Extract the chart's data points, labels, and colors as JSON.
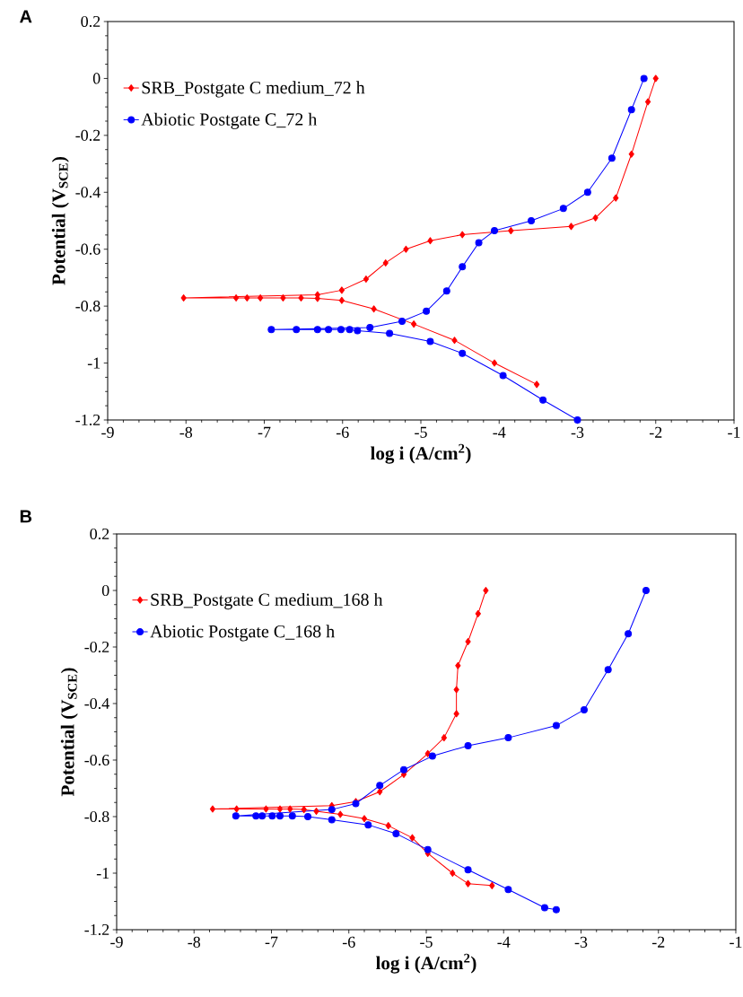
{
  "chart_data": [
    {
      "type": "line",
      "annotations": [
        "A"
      ],
      "xlabel": "log i (A/cm$^{2}$)",
      "ylabel": "Potential (V$_{SCE}$)",
      "xlim": [
        -9,
        -1
      ],
      "ylim": [
        -1.2,
        0.2
      ],
      "xticks": [
        -9,
        -8,
        -7,
        -6,
        -5,
        -4,
        -3,
        -2,
        -1
      ],
      "yticks": [
        -1.2,
        -1,
        -0.8,
        -0.6,
        -0.4,
        -0.2,
        0,
        0.2
      ],
      "grid": false,
      "legend": "top left",
      "series": [
        {
          "name": "SRB_Postgate C medium_72 h",
          "color": "#ff0000",
          "marker": "diamond",
          "x": [
            -3.52,
            -4.06,
            -4.57,
            -5.09,
            -5.6,
            -6.01,
            -6.32,
            -6.53,
            -6.76,
            -7.05,
            -7.22,
            -7.36,
            -8.03,
            -6.32,
            -6.01,
            -5.7,
            -5.45,
            -5.19,
            -4.88,
            -4.47,
            -3.85,
            -3.08,
            -2.77,
            -2.51,
            -2.31,
            -2.1,
            -2.0
          ],
          "values": [
            -1.075,
            -1.0,
            -0.92,
            -0.863,
            -0.81,
            -0.78,
            -0.773,
            -0.771,
            -0.771,
            -0.771,
            -0.771,
            -0.771,
            -0.771,
            -0.76,
            -0.744,
            -0.705,
            -0.648,
            -0.6,
            -0.57,
            -0.549,
            -0.535,
            -0.52,
            -0.49,
            -0.42,
            -0.266,
            -0.082,
            0
          ]
        },
        {
          "name": "Abiotic Postgate C_72 h",
          "color": "#0000ff",
          "marker": "circle",
          "x": [
            -3.0,
            -3.44,
            -3.95,
            -4.47,
            -4.88,
            -5.4,
            -5.81,
            -5.91,
            -6.02,
            -6.18,
            -6.32,
            -6.59,
            -6.91,
            -5.65,
            -5.24,
            -4.93,
            -4.67,
            -4.47,
            -4.26,
            -4.06,
            -3.59,
            -3.18,
            -2.87,
            -2.56,
            -2.31,
            -2.15
          ],
          "values": [
            -1.2,
            -1.13,
            -1.044,
            -0.966,
            -0.924,
            -0.896,
            -0.886,
            -0.882,
            -0.882,
            -0.882,
            -0.882,
            -0.882,
            -0.882,
            -0.875,
            -0.853,
            -0.818,
            -0.747,
            -0.662,
            -0.577,
            -0.535,
            -0.5,
            -0.457,
            -0.4,
            -0.28,
            -0.11,
            0
          ]
        }
      ]
    },
    {
      "type": "line",
      "annotations": [
        "B"
      ],
      "xlabel": "log i (A/cm$^{2}$)",
      "ylabel": "Potential (V$_{SCE}$)",
      "xlim": [
        -9,
        -1
      ],
      "ylim": [
        -1.2,
        0.2
      ],
      "xticks": [
        -9,
        -8,
        -7,
        -6,
        -5,
        -4,
        -3,
        -2,
        -1
      ],
      "yticks": [
        -1.2,
        -1,
        -0.8,
        -0.6,
        -0.4,
        -0.2,
        0,
        0.2
      ],
      "grid": false,
      "legend": "top left",
      "series": [
        {
          "name": "SRB_Postgate C medium_168 h",
          "color": "#ff0000",
          "marker": "diamond",
          "x": [
            -4.15,
            -4.46,
            -4.66,
            -4.98,
            -5.18,
            -5.49,
            -5.8,
            -6.11,
            -6.42,
            -6.58,
            -6.76,
            -6.89,
            -7.07,
            -7.45,
            -7.76,
            -6.22,
            -5.91,
            -5.6,
            -5.29,
            -4.98,
            -4.77,
            -4.61,
            -4.61,
            -4.59,
            -4.46,
            -4.33,
            -4.23
          ],
          "values": [
            -1.044,
            -1.037,
            -1.0,
            -0.93,
            -0.875,
            -0.832,
            -0.807,
            -0.792,
            -0.781,
            -0.775,
            -0.773,
            -0.773,
            -0.773,
            -0.773,
            -0.773,
            -0.761,
            -0.747,
            -0.712,
            -0.651,
            -0.577,
            -0.521,
            -0.436,
            -0.351,
            -0.266,
            -0.181,
            -0.082,
            0
          ]
        },
        {
          "name": "Abiotic Postgate C_168 h",
          "color": "#0000ff",
          "marker": "circle",
          "x": [
            -3.32,
            -3.47,
            -3.94,
            -4.46,
            -4.98,
            -5.39,
            -5.75,
            -6.22,
            -6.53,
            -6.73,
            -6.89,
            -6.99,
            -7.12,
            -7.2,
            -7.46,
            -6.22,
            -5.91,
            -5.6,
            -5.29,
            -4.92,
            -4.46,
            -3.94,
            -3.32,
            -2.96,
            -2.65,
            -2.39,
            -2.16
          ],
          "values": [
            -1.129,
            -1.122,
            -1.058,
            -0.988,
            -0.917,
            -0.86,
            -0.829,
            -0.811,
            -0.8,
            -0.798,
            -0.798,
            -0.798,
            -0.798,
            -0.798,
            -0.798,
            -0.775,
            -0.754,
            -0.69,
            -0.634,
            -0.586,
            -0.549,
            -0.521,
            -0.478,
            -0.422,
            -0.28,
            -0.153,
            0
          ]
        }
      ]
    }
  ]
}
